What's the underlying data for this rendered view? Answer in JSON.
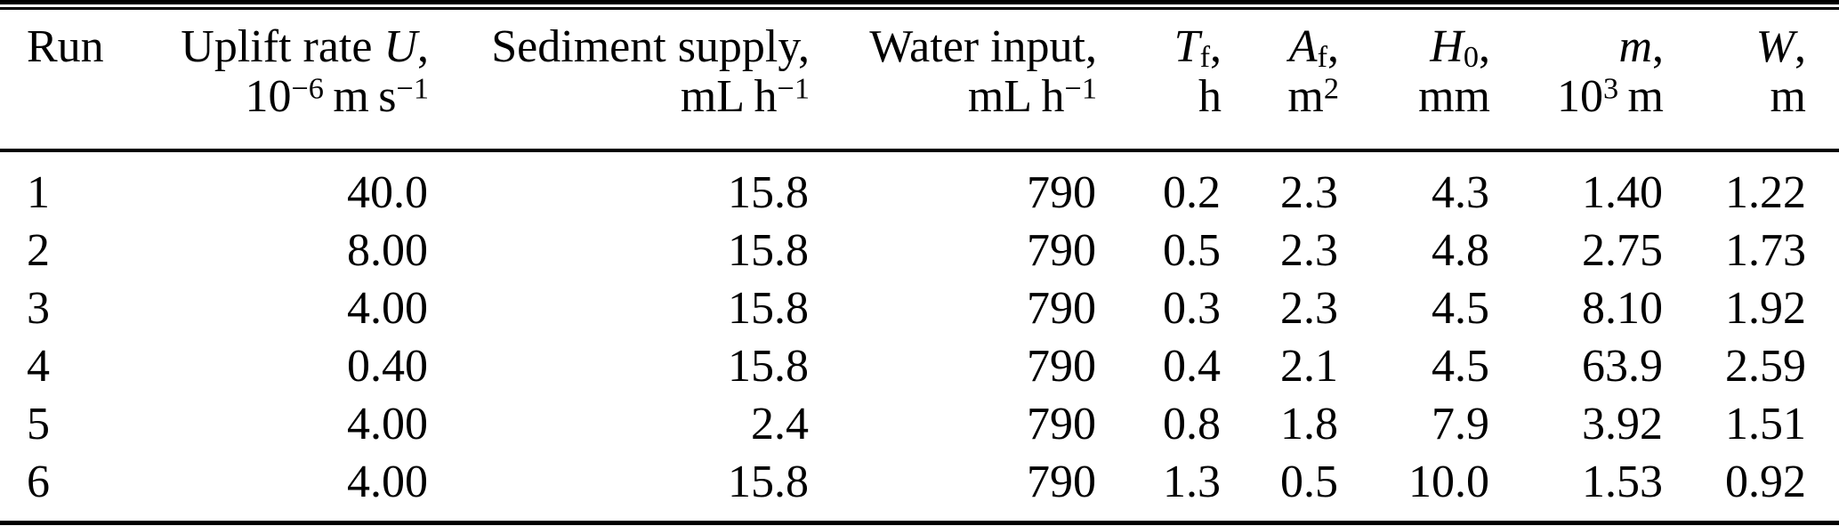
{
  "colors": {
    "text": "#000000",
    "background": "#ffffff",
    "rule": "#000000"
  },
  "table": {
    "header": {
      "columns": [
        {
          "id": "run",
          "line1": [
            {
              "t": "Run"
            }
          ],
          "line2": []
        },
        {
          "id": "uplift-rate",
          "line1": [
            {
              "t": "Uplift rate "
            },
            {
              "t": "U",
              "style": "i"
            },
            {
              "t": ","
            }
          ],
          "line2": [
            {
              "t": "10"
            },
            {
              "t": "−6",
              "style": "sup"
            },
            {
              "t": " m s"
            },
            {
              "t": "−1",
              "style": "sup"
            }
          ]
        },
        {
          "id": "sediment-supply",
          "line1": [
            {
              "t": "Sediment supply,"
            }
          ],
          "line2": [
            {
              "t": "mL h"
            },
            {
              "t": "−1",
              "style": "sup"
            }
          ]
        },
        {
          "id": "water-input",
          "line1": [
            {
              "t": "Water input,"
            }
          ],
          "line2": [
            {
              "t": "mL h"
            },
            {
              "t": "−1",
              "style": "sup"
            }
          ]
        },
        {
          "id": "t-f",
          "line1": [
            {
              "t": "T",
              "style": "i"
            },
            {
              "t": "f",
              "style": "sub"
            },
            {
              "t": ","
            }
          ],
          "line2": [
            {
              "t": "h"
            }
          ]
        },
        {
          "id": "a-f",
          "line1": [
            {
              "t": "A",
              "style": "i"
            },
            {
              "t": "f",
              "style": "sub"
            },
            {
              "t": ","
            }
          ],
          "line2": [
            {
              "t": "m"
            },
            {
              "t": "2",
              "style": "sup"
            }
          ]
        },
        {
          "id": "h-0",
          "line1": [
            {
              "t": "H",
              "style": "i"
            },
            {
              "t": "0",
              "style": "sub"
            },
            {
              "t": ","
            }
          ],
          "line2": [
            {
              "t": "mm"
            }
          ]
        },
        {
          "id": "m",
          "line1": [
            {
              "t": "m",
              "style": "i"
            },
            {
              "t": ","
            }
          ],
          "line2": [
            {
              "t": "10"
            },
            {
              "t": "3",
              "style": "sup"
            },
            {
              "t": " m"
            }
          ]
        },
        {
          "id": "w",
          "line1": [
            {
              "t": "W",
              "style": "i"
            },
            {
              "t": ","
            }
          ],
          "line2": [
            {
              "t": "m"
            }
          ]
        }
      ]
    },
    "rows": [
      [
        "1",
        "40.0",
        "15.8",
        "790",
        "0.2",
        "2.3",
        "4.3",
        "1.40",
        "1.22"
      ],
      [
        "2",
        "8.00",
        "15.8",
        "790",
        "0.5",
        "2.3",
        "4.8",
        "2.75",
        "1.73"
      ],
      [
        "3",
        "4.00",
        "15.8",
        "790",
        "0.3",
        "2.3",
        "4.5",
        "8.10",
        "1.92"
      ],
      [
        "4",
        "0.40",
        "15.8",
        "790",
        "0.4",
        "2.1",
        "4.5",
        "63.9",
        "2.59"
      ],
      [
        "5",
        "4.00",
        "2.4",
        "790",
        "0.8",
        "1.8",
        "7.9",
        "3.92",
        "1.51"
      ],
      [
        "6",
        "4.00",
        "15.8",
        "790",
        "1.3",
        "0.5",
        "10.0",
        "1.53",
        "0.92"
      ]
    ]
  }
}
